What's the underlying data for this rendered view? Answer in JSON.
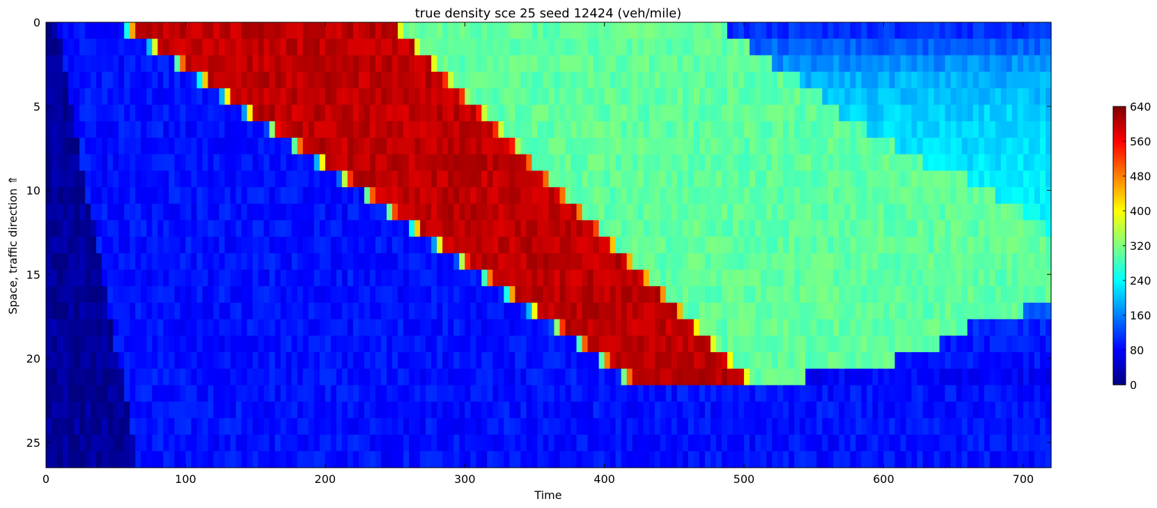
{
  "chart_data": {
    "type": "heatmap",
    "title": "true density sce 25 seed 12424 (veh/mile)",
    "xlabel": "Time",
    "ylabel": "Space, traffic direction ⇑",
    "xlim": [
      0,
      720
    ],
    "ylim": [
      0,
      26.5
    ],
    "y_inverted": true,
    "x_ticks": [
      0,
      100,
      200,
      300,
      400,
      500,
      600,
      700
    ],
    "y_ticks": [
      0,
      5,
      10,
      15,
      20,
      25
    ],
    "colorbar": {
      "min": 0,
      "max": 640,
      "ticks": [
        0,
        80,
        160,
        240,
        320,
        400,
        480,
        560,
        640
      ],
      "colormap": "jet"
    },
    "rows": 27,
    "free_flow_density": 90,
    "jam_density": 600,
    "discharge_density": 300,
    "queue_front_time": [
      55,
      72,
      90,
      107,
      124,
      140,
      157,
      174,
      192,
      209,
      226,
      242,
      259,
      276,
      293,
      310,
      327,
      344,
      361,
      378,
      394,
      410,
      999,
      999,
      999,
      999,
      999
    ],
    "jam_end_time": [
      250,
      262,
      274,
      285,
      297,
      309,
      321,
      333,
      344,
      356,
      368,
      380,
      392,
      403,
      415,
      427,
      439,
      451,
      462,
      474,
      486,
      498,
      999,
      999,
      999,
      999,
      999
    ],
    "recovery_time": [
      490,
      505,
      520,
      540,
      555,
      570,
      590,
      610,
      630,
      660,
      680,
      700,
      715,
      720,
      720,
      720,
      720,
      700,
      660,
      640,
      610,
      545,
      420,
      999,
      999,
      999,
      999
    ],
    "recovery_density": [
      110,
      140,
      170,
      190,
      200,
      210,
      215,
      220,
      225,
      230,
      235,
      240,
      245,
      250,
      255,
      260,
      255,
      130,
      100,
      95,
      90,
      80,
      75,
      90,
      90,
      90,
      90
    ]
  }
}
